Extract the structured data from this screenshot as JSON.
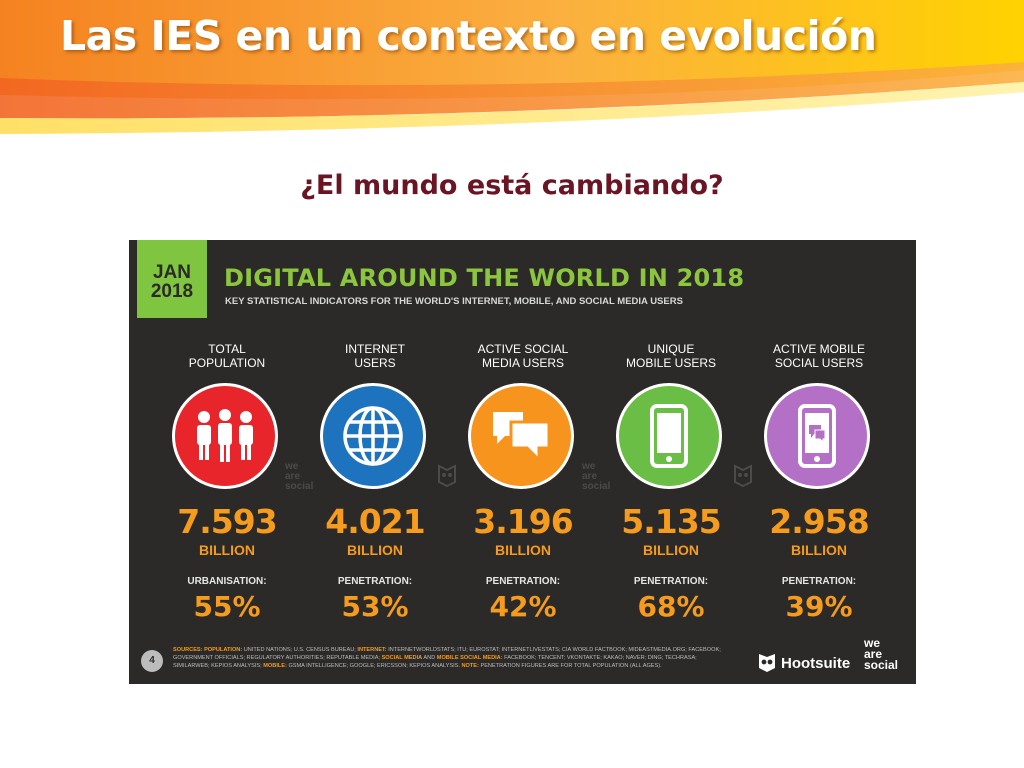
{
  "slide": {
    "title": "Las IES en un contexto en evolución",
    "subtitle": "¿El mundo está cambiando?"
  },
  "colors": {
    "banner_orange": "#f7941d",
    "banner_yellow": "#ffd200",
    "subtitle": "#6b1423",
    "panel_bg": "#2b2a28",
    "accent_green": "#8cc63f",
    "value_orange": "#f59b1e"
  },
  "infographic": {
    "badge_month": "JAN",
    "badge_year": "2018",
    "title": "DIGITAL AROUND THE WORLD IN 2018",
    "subtitle": "KEY STATISTICAL INDICATORS FOR THE WORLD'S INTERNET, MOBILE, AND SOCIAL MEDIA USERS",
    "stats": [
      {
        "label_line1": "TOTAL",
        "label_line2": "POPULATION",
        "icon": "population-icon",
        "color": "#e8252a",
        "value": "7.593",
        "unit": "BILLION",
        "pen_label": "URBANISATION:",
        "pen_value": "55%"
      },
      {
        "label_line1": "INTERNET",
        "label_line2": "USERS",
        "icon": "globe-icon",
        "color": "#1e73be",
        "value": "4.021",
        "unit": "BILLION",
        "pen_label": "PENETRATION:",
        "pen_value": "53%"
      },
      {
        "label_line1": "ACTIVE SOCIAL",
        "label_line2": "MEDIA USERS",
        "icon": "chat-bubbles-icon",
        "color": "#f7941d",
        "value": "3.196",
        "unit": "BILLION",
        "pen_label": "PENETRATION:",
        "pen_value": "42%"
      },
      {
        "label_line1": "UNIQUE",
        "label_line2": "MOBILE USERS",
        "icon": "smartphone-icon",
        "color": "#6abd45",
        "value": "5.135",
        "unit": "BILLION",
        "pen_label": "PENETRATION:",
        "pen_value": "68%"
      },
      {
        "label_line1": "ACTIVE MOBILE",
        "label_line2": "SOCIAL USERS",
        "icon": "mobile-social-icon",
        "color": "#b46fc6",
        "value": "2.958",
        "unit": "BILLION",
        "pen_label": "PENETRATION:",
        "pen_value": "39%"
      }
    ],
    "watermark": {
      "line1": "we",
      "line2": "are",
      "line3": "social"
    },
    "page_number": "4",
    "sources": {
      "k1": "SOURCES: POPULATION:",
      "t1": " UNITED NATIONS; U.S. CENSUS BUREAU; ",
      "k2": "INTERNET:",
      "t2": " INTERNETWORLDSTATS; ITU; EUROSTAT; INTERNETLIVESTATS; CIA WORLD FACTBOOK; MIDEASTMEDIA.ORG; FACEBOOK; GOVERNMENT OFFICIALS; REGULATORY AUTHORITIES; REPUTABLE MEDIA; ",
      "k3": "SOCIAL MEDIA",
      "t3": " AND ",
      "k4": "MOBILE SOCIAL MEDIA:",
      "t4": " FACEBOOK; TENCENT; VKONTAKTE; KAKAO; NAVER; DING; TECHRASA; SIMILARWEB; KEPIOS ANALYSIS; ",
      "k5": "MOBILE:",
      "t5": " GSMA INTELLIGENCE; GOOGLE; ERICSSON; KEPIOS ANALYSIS. ",
      "k6": "NOTE:",
      "t6": " PENETRATION FIGURES ARE FOR TOTAL POPULATION (ALL AGES)."
    },
    "hootsuite_label": "Hootsuite",
    "was_logo": {
      "line1": "we",
      "line2": "are",
      "line3": "social"
    }
  }
}
